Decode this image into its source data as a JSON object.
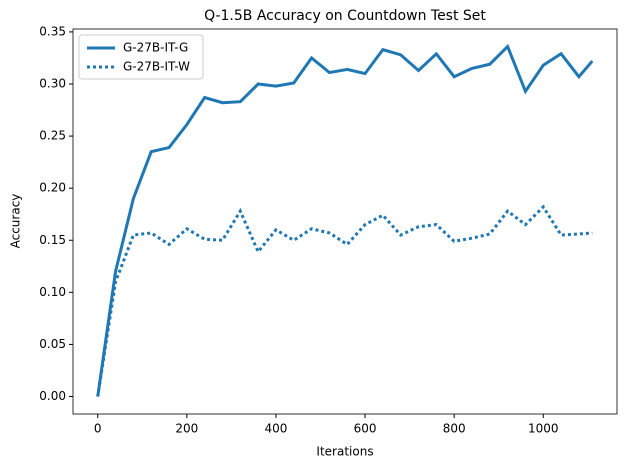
{
  "chart_data": {
    "type": "line",
    "title": "Q-1.5B Accuracy on Countdown Test Set",
    "x_label": "Iterations",
    "y_label": "Accuracy",
    "x": [
      0,
      40,
      80,
      120,
      160,
      200,
      240,
      280,
      320,
      360,
      400,
      440,
      480,
      520,
      560,
      600,
      640,
      680,
      720,
      760,
      800,
      840,
      880,
      920,
      960,
      1000,
      1040,
      1080,
      1110
    ],
    "series": [
      {
        "name": "G-27B-IT-G",
        "color": "#1f77b4",
        "style": "solid",
        "values": [
          0,
          0.12,
          0.19,
          0.235,
          0.239,
          0.261,
          0.287,
          0.282,
          0.283,
          0.3,
          0.298,
          0.301,
          0.325,
          0.311,
          0.314,
          0.31,
          0.333,
          0.328,
          0.313,
          0.329,
          0.307,
          0.315,
          0.319,
          0.336,
          0.293,
          0.318,
          0.329,
          0.307,
          0.322
        ]
      },
      {
        "name": "G-27B-IT-W",
        "color": "#1f77b4",
        "style": "dotted",
        "values": [
          0,
          0.11,
          0.155,
          0.157,
          0.146,
          0.161,
          0.151,
          0.15,
          0.178,
          0.139,
          0.16,
          0.15,
          0.161,
          0.157,
          0.146,
          0.165,
          0.174,
          0.155,
          0.163,
          0.165,
          0.149,
          0.152,
          0.156,
          0.178,
          0.165,
          0.182,
          0.155,
          0.156,
          0.157
        ]
      }
    ],
    "xlim": [
      -55.5,
      1165.5
    ],
    "ylim": [
      -0.0168,
      0.3528
    ],
    "xticks": [
      0,
      200,
      400,
      600,
      800,
      1000
    ],
    "yticks": [
      {
        "value": 0,
        "label": "0.00"
      },
      {
        "value": 0.05,
        "label": "0.05"
      },
      {
        "value": 0.1,
        "label": "0.10"
      },
      {
        "value": 0.15,
        "label": "0.15"
      },
      {
        "value": 0.2,
        "label": "0.20"
      },
      {
        "value": 0.25,
        "label": "0.25"
      },
      {
        "value": 0.3,
        "label": "0.30"
      },
      {
        "value": 0.35,
        "label": "0.35"
      }
    ],
    "legend": "upper left"
  }
}
